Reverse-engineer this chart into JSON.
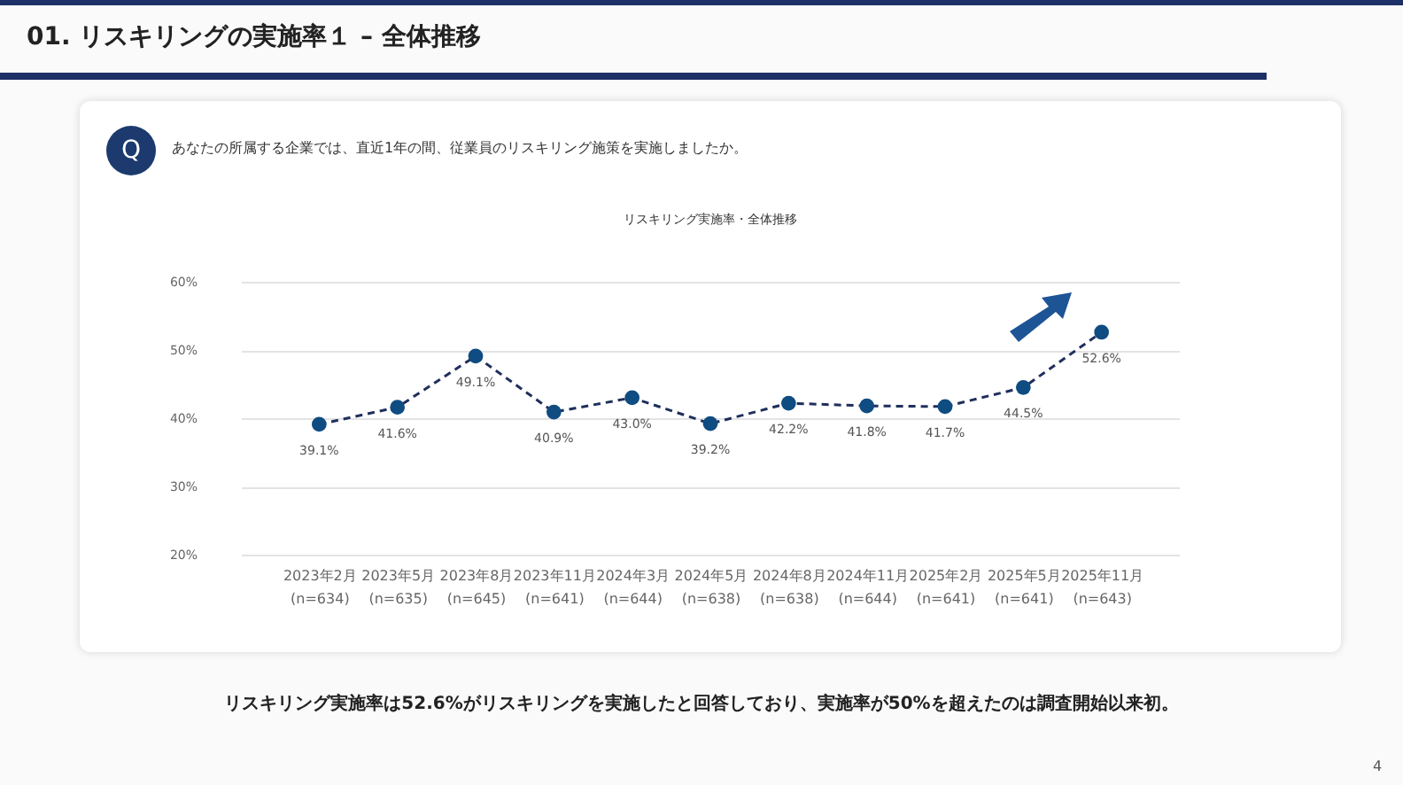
{
  "chart_data": {
    "type": "line",
    "title": "01. リスキリングの実施率１ – 全体推移",
    "subtitle": "リスキリング実施率・全体推移",
    "annotations": [
      "Q",
      "あなたの所属する企業では、直近1年の間、従業員のリスキリング施策を実施しましたか。",
      "リスキリング実施率は52.6%がリスキリングを実施したと回答しており、実施率が50%を超えたのは調査開始以来初。",
      "4"
    ],
    "categories": [
      "2023年2月\n(n=634)",
      "2023年5月\n(n=635)",
      "2023年8月\n(n=645)",
      "2023年11月\n(n=641)",
      "2024年3月\n(n=644)",
      "2024年5月\n(n=638)",
      "2024年8月\n(n=638)",
      "2024年11月\n(n=644)",
      "2025年2月\n(n=641)",
      "2025年5月\n(n=641)",
      "2025年11月\n(n=643)"
    ],
    "series": [
      {
        "color": "#0f4c81",
        "values": [
          39.1,
          41.6,
          49.1,
          40.9,
          43.0,
          39.2,
          42.2,
          41.8,
          41.7,
          44.5,
          52.6
        ],
        "value_labels": [
          "39.1%",
          "41.6%",
          "49.1%",
          "40.9%",
          "43.0%",
          "39.2%",
          "42.2%",
          "41.8%",
          "41.7%",
          "44.5%",
          "52.6%"
        ]
      }
    ],
    "ylim": [
      20,
      60
    ],
    "yticks": [
      {
        "value": 20,
        "label": "20%"
      },
      {
        "value": 30,
        "label": "30%"
      },
      {
        "value": 40,
        "label": "40%"
      },
      {
        "value": 50,
        "label": "50%"
      },
      {
        "value": 60,
        "label": "60%"
      }
    ],
    "grid": "y",
    "marker": "circle",
    "line_style": "dashed",
    "legend": false
  }
}
